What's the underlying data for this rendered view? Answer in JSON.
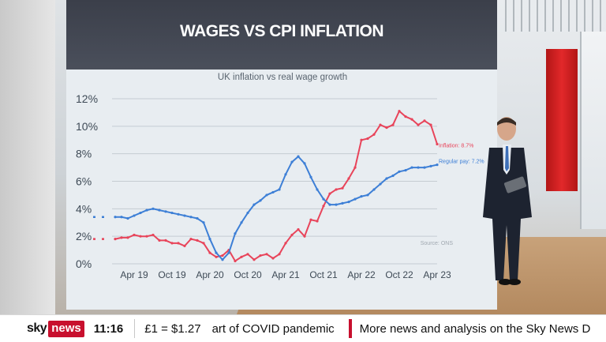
{
  "graphic": {
    "title": "WAGES VS CPI INFLATION",
    "subtitle": "UK inflation vs real wage growth",
    "source": "Source: ONS"
  },
  "ticker": {
    "brand_sky": "sky",
    "brand_news": "news",
    "time": "11:16",
    "rate": "£1 = $1.27",
    "headline": "art of COVID pandemic",
    "headline2": "More news and analysis on the Sky News D"
  },
  "colors": {
    "inflation": "#e8445a",
    "regular_pay": "#3d7fd6",
    "header": "#3b3f4a",
    "sky_red": "#c8102e"
  },
  "chart_data": {
    "type": "line",
    "title": "WAGES VS CPI INFLATION",
    "subtitle": "UK inflation vs real wage growth",
    "xlabel": "",
    "ylabel": "",
    "x_ticks": [
      "Apr 19",
      "Oct 19",
      "Apr 20",
      "Oct 20",
      "Apr 21",
      "Oct 21",
      "Apr 22",
      "Oct 22",
      "Apr 23"
    ],
    "y_ticks": [
      "0%",
      "2%",
      "4%",
      "6%",
      "8%",
      "10%",
      "12%"
    ],
    "ylim": [
      0,
      12
    ],
    "grid": true,
    "x": [
      "Jan 19",
      "Feb 19",
      "Mar 19",
      "Apr 19",
      "May 19",
      "Jun 19",
      "Jul 19",
      "Aug 19",
      "Sep 19",
      "Oct 19",
      "Nov 19",
      "Dec 19",
      "Jan 20",
      "Feb 20",
      "Mar 20",
      "Apr 20",
      "May 20",
      "Jun 20",
      "Jul 20",
      "Aug 20",
      "Sep 20",
      "Oct 20",
      "Nov 20",
      "Dec 20",
      "Jan 21",
      "Feb 21",
      "Mar 21",
      "Apr 21",
      "May 21",
      "Jun 21",
      "Jul 21",
      "Aug 21",
      "Sep 21",
      "Oct 21",
      "Nov 21",
      "Dec 21",
      "Jan 22",
      "Feb 22",
      "Mar 22",
      "Apr 22",
      "May 22",
      "Jun 22",
      "Jul 22",
      "Aug 22",
      "Sep 22",
      "Oct 22",
      "Nov 22",
      "Dec 22",
      "Jan 23",
      "Feb 23",
      "Mar 23",
      "Apr 23"
    ],
    "series": [
      {
        "name": "Inflation",
        "end_label": "Inflation: 8.7%",
        "values": [
          1.8,
          1.9,
          1.9,
          2.1,
          2.0,
          2.0,
          2.1,
          1.7,
          1.7,
          1.5,
          1.5,
          1.3,
          1.8,
          1.7,
          1.5,
          0.8,
          0.5,
          0.6,
          1.0,
          0.2,
          0.5,
          0.7,
          0.3,
          0.6,
          0.7,
          0.4,
          0.7,
          1.5,
          2.1,
          2.5,
          2.0,
          3.2,
          3.1,
          4.2,
          5.1,
          5.4,
          5.5,
          6.2,
          7.0,
          9.0,
          9.1,
          9.4,
          10.1,
          9.9,
          10.1,
          11.1,
          10.7,
          10.5,
          10.1,
          10.4,
          10.1,
          8.7
        ]
      },
      {
        "name": "Regular pay",
        "end_label": "Regular pay: 7.2%",
        "values": [
          3.4,
          3.4,
          3.3,
          3.5,
          3.7,
          3.9,
          4.0,
          3.9,
          3.8,
          3.7,
          3.6,
          3.5,
          3.4,
          3.3,
          3.0,
          1.8,
          0.8,
          0.3,
          0.8,
          2.2,
          3.0,
          3.7,
          4.3,
          4.6,
          5.0,
          5.2,
          5.4,
          6.5,
          7.4,
          7.8,
          7.3,
          6.3,
          5.4,
          4.7,
          4.3,
          4.3,
          4.4,
          4.5,
          4.7,
          4.9,
          5.0,
          5.4,
          5.8,
          6.2,
          6.4,
          6.7,
          6.8,
          7.0,
          7.0,
          7.0,
          7.1,
          7.2
        ]
      }
    ]
  }
}
